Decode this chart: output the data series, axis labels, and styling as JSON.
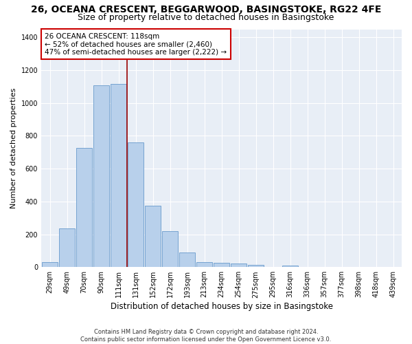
{
  "title_line1": "26, OCEANA CRESCENT, BEGGARWOOD, BASINGSTOKE, RG22 4FE",
  "title_line2": "Size of property relative to detached houses in Basingstoke",
  "xlabel": "Distribution of detached houses by size in Basingstoke",
  "ylabel": "Number of detached properties",
  "categories": [
    "29sqm",
    "49sqm",
    "70sqm",
    "90sqm",
    "111sqm",
    "131sqm",
    "152sqm",
    "172sqm",
    "193sqm",
    "213sqm",
    "234sqm",
    "254sqm",
    "275sqm",
    "295sqm",
    "316sqm",
    "336sqm",
    "357sqm",
    "377sqm",
    "398sqm",
    "418sqm",
    "439sqm"
  ],
  "values": [
    30,
    235,
    725,
    1110,
    1115,
    760,
    375,
    220,
    90,
    30,
    25,
    20,
    15,
    0,
    10,
    0,
    0,
    0,
    0,
    0,
    0
  ],
  "bar_color": "#b8d0eb",
  "bar_edge_color": "#6699cc",
  "bg_color": "#e8eef6",
  "grid_color": "#ffffff",
  "annotation_line_color": "#990000",
  "annotation_text_line1": "26 OCEANA CRESCENT: 118sqm",
  "annotation_text_line2": "← 52% of detached houses are smaller (2,460)",
  "annotation_text_line3": "47% of semi-detached houses are larger (2,222) →",
  "annotation_box_color": "#ffffff",
  "annotation_box_edge": "#cc0000",
  "footer": "Contains HM Land Registry data © Crown copyright and database right 2024.\nContains public sector information licensed under the Open Government Licence v3.0.",
  "ylim": [
    0,
    1450
  ],
  "yticks": [
    0,
    200,
    400,
    600,
    800,
    1000,
    1200,
    1400
  ],
  "title_fontsize": 10,
  "subtitle_fontsize": 9,
  "xlabel_fontsize": 8.5,
  "ylabel_fontsize": 8,
  "tick_fontsize": 7,
  "annotation_fontsize": 7.5,
  "footer_fontsize": 6,
  "red_line_x": 4.5
}
